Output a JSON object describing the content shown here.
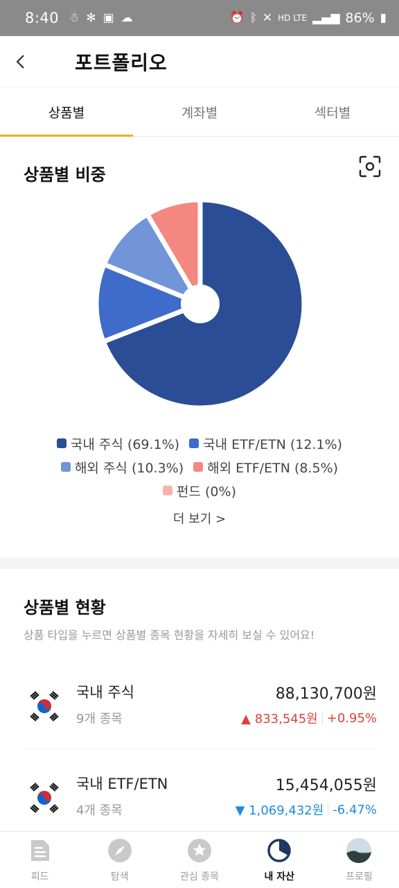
{
  "status_bar": {
    "time": "8:40",
    "network": "HD LTE",
    "battery": "86%"
  },
  "header": {
    "title": "포트폴리오"
  },
  "tabs": [
    {
      "label": "상품별",
      "active": true
    },
    {
      "label": "계좌별",
      "active": false
    },
    {
      "label": "섹터별",
      "active": false
    }
  ],
  "allocation": {
    "title": "상품별 비중",
    "more_label": "더 보기 >",
    "legend": [
      {
        "label": "국내 주식 (69.1%)",
        "color": "#2b4d95"
      },
      {
        "label": "국내 ETF/ETN (12.1%)",
        "color": "#3f6ccb"
      },
      {
        "label": "해외 주식 (10.3%)",
        "color": "#7294d8"
      },
      {
        "label": "해외 ETF/ETN (8.5%)",
        "color": "#f4877f"
      },
      {
        "label": "펀드 (0%)",
        "color": "#f7b2ac"
      }
    ]
  },
  "chart_data": {
    "type": "pie",
    "categories": [
      "국내 주식",
      "국내 ETF/ETN",
      "해외 주식",
      "해외 ETF/ETN",
      "펀드"
    ],
    "values": [
      69.1,
      12.1,
      10.3,
      8.5,
      0
    ],
    "colors": [
      "#2b4d95",
      "#3f6ccb",
      "#7294d8",
      "#f4877f",
      "#f7b2ac"
    ],
    "title": "상품별 비중",
    "legend": "bottom"
  },
  "holdings": {
    "title": "상품별 현황",
    "description": "상품 타입을 누르면 상품별 종목 현황을 자세히 보실 수 있어요!",
    "items": [
      {
        "name": "국내 주식",
        "count": "9개 종목",
        "amount": "88,130,700원",
        "change": "▲ 833,545원",
        "rate": "+0.95%",
        "color": "#e0413a"
      },
      {
        "name": "국내 ETF/ETN",
        "count": "4개 종목",
        "amount": "15,454,055원",
        "change": "▼ 1,069,432원",
        "rate": "-6.47%",
        "color": "#1e8be0"
      }
    ]
  },
  "bottom_nav": [
    {
      "label": "피드",
      "icon": "feed-icon"
    },
    {
      "label": "탐색",
      "icon": "compass-icon"
    },
    {
      "label": "관심 종목",
      "icon": "star-icon"
    },
    {
      "label": "내 자산",
      "icon": "pie-chart-icon",
      "active": true
    },
    {
      "label": "프로필",
      "icon": "avatar"
    }
  ]
}
